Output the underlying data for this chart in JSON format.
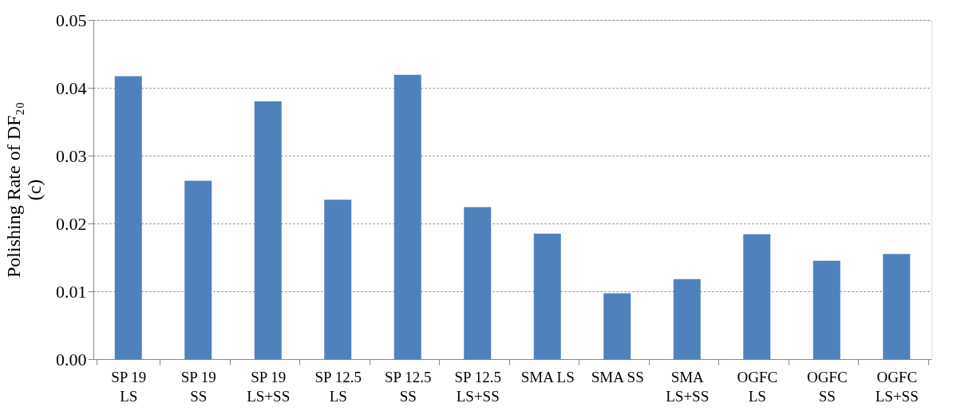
{
  "chart_data": {
    "type": "bar",
    "ylabel": "Polishing Rate of DF₂₀\n(c)",
    "categories": [
      "SP 19\nLS",
      "SP 19\nSS",
      "SP 19\nLS+SS",
      "SP 12.5\nLS",
      "SP 12.5\nSS",
      "SP 12.5\nLS+SS",
      "SMA LS",
      "SMA SS",
      "SMA\nLS+SS",
      "OGFC\nLS",
      "OGFC\nSS",
      "OGFC\nLS+SS"
    ],
    "values": [
      0.0417,
      0.0263,
      0.038,
      0.0235,
      0.0419,
      0.0224,
      0.0185,
      0.0097,
      0.0118,
      0.0184,
      0.0145,
      0.0155
    ],
    "color": "#4f81bd",
    "ylim": [
      0,
      0.05
    ],
    "yticks": [
      {
        "value": 0,
        "label": "0.00"
      },
      0.01,
      0.02,
      0.03,
      0.04,
      0.05
    ],
    "grid": "y"
  }
}
